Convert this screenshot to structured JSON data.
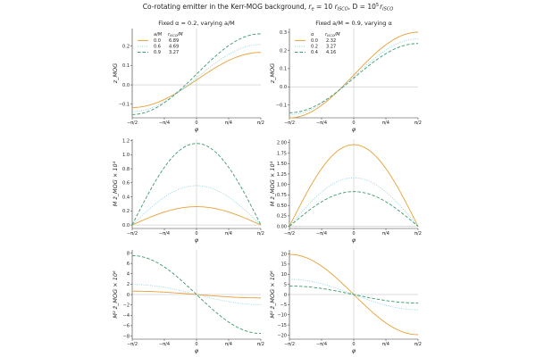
{
  "title": "Co-rotating emitter in the Kerr-MOG background, r_e = 10 r_ISCO, D = 10^5 r_ISCO",
  "title_parts": {
    "prefix": "Co-rotating emitter in the Kerr-MOG background, ",
    "re": "r",
    "re_sub": "e",
    "re_eq": " = 10 ",
    "r1": "r",
    "r1_sub": "ISCO",
    "sep": ", D = 10",
    "exp": "5",
    "r2": "r",
    "r2_sub": "ISCO"
  },
  "colors": {
    "orange": "#e8a035",
    "blue": "#8fd0e0",
    "green": "#3a9a6a",
    "axis": "#333333",
    "zero_line": "#bbbbbb"
  },
  "chart_data": [
    {
      "id": "z-left",
      "type": "line",
      "row": 0,
      "col": 0,
      "title": "Fixed α = 0.2, varying a/M",
      "xlabel": "φ",
      "ylabel": "z_MOG",
      "xlim": [
        -1.5708,
        1.5708
      ],
      "ylim": [
        -0.17,
        0.29
      ],
      "yticks": [
        -0.1,
        0.0,
        0.1,
        0.2
      ],
      "ytick_labels": [
        "−0.1",
        "0.0",
        "0.1",
        "0.2"
      ],
      "xticks": [
        -1.5708,
        -0.7854,
        0,
        0.7854,
        1.5708
      ],
      "xtick_labels": [
        "−π/2",
        "−π/4",
        "0",
        "π/4",
        "π/2"
      ],
      "legend": {
        "title_param": "a/M",
        "title_extra": "r_ISCO/M",
        "placement": "top-left",
        "entries": [
          {
            "param": "0.0",
            "extra": "6.89",
            "color": "#e8a035",
            "dash": "solid"
          },
          {
            "param": "0.6",
            "extra": "4.69",
            "color": "#8fd0e0",
            "dash": "dotted"
          },
          {
            "param": "0.9",
            "extra": "3.27",
            "color": "#3a9a6a",
            "dash": "dashed"
          }
        ]
      },
      "series": [
        {
          "name": "a/M = 0.0",
          "form": "offsin",
          "amp": 0.142,
          "offset": 0.025,
          "color": "#e8a035",
          "dash": "solid"
        },
        {
          "name": "a/M = 0.6",
          "form": "offsin",
          "amp": 0.173,
          "offset": 0.035,
          "color": "#8fd0e0",
          "dash": "dotted"
        },
        {
          "name": "a/M = 0.9",
          "form": "offsin",
          "amp": 0.208,
          "offset": 0.055,
          "color": "#3a9a6a",
          "dash": "dashed"
        }
      ]
    },
    {
      "id": "z-right",
      "type": "line",
      "row": 0,
      "col": 1,
      "title": "Fixed a/M = 0.9, varying α",
      "xlabel": "φ",
      "ylabel": "z_MOG",
      "xlim": [
        -1.5708,
        1.5708
      ],
      "ylim": [
        -0.17,
        0.32
      ],
      "yticks": [
        -0.1,
        0.0,
        0.1,
        0.2,
        0.3
      ],
      "ytick_labels": [
        "−0.1",
        "0.0",
        "0.1",
        "0.2",
        "0.3"
      ],
      "xticks": [
        -1.5708,
        -0.7854,
        0,
        0.7854,
        1.5708
      ],
      "xtick_labels": [
        "−π/2",
        "−π/4",
        "0",
        "π/4",
        "π/2"
      ],
      "legend": {
        "title_param": "α",
        "title_extra": "r_ISCO/M",
        "placement": "top-left",
        "entries": [
          {
            "param": "0.0",
            "extra": "2.32",
            "color": "#e8a035",
            "dash": "solid"
          },
          {
            "param": "0.2",
            "extra": "3.27",
            "color": "#8fd0e0",
            "dash": "dotted"
          },
          {
            "param": "0.4",
            "extra": "4.16",
            "color": "#3a9a6a",
            "dash": "dashed"
          }
        ]
      },
      "series": [
        {
          "name": "α = 0.0",
          "form": "offsin",
          "amp": 0.235,
          "offset": 0.065,
          "color": "#e8a035",
          "dash": "solid"
        },
        {
          "name": "α = 0.2",
          "form": "offsin",
          "amp": 0.208,
          "offset": 0.055,
          "color": "#8fd0e0",
          "dash": "dotted"
        },
        {
          "name": "α = 0.4",
          "form": "offsin",
          "amp": 0.19,
          "offset": 0.048,
          "color": "#3a9a6a",
          "dash": "dashed"
        }
      ]
    },
    {
      "id": "dz-left",
      "type": "line",
      "row": 1,
      "col": 0,
      "xlabel": "φ",
      "ylabel": "M ż_MOG × 10³",
      "xlim": [
        -1.5708,
        1.5708
      ],
      "ylim": [
        -0.05,
        1.22
      ],
      "yticks": [
        0.0,
        0.2,
        0.4,
        0.6,
        0.8,
        1.0,
        1.2
      ],
      "ytick_labels": [
        "0.0",
        "0.2",
        "0.4",
        "0.6",
        "0.8",
        "1.0",
        "1.2"
      ],
      "xticks": [
        -1.5708,
        -0.7854,
        0,
        0.7854,
        1.5708
      ],
      "xtick_labels": [
        "−π/2",
        "−π/4",
        "0",
        "π/4",
        "π/2"
      ],
      "series": [
        {
          "name": "a/M = 0.0",
          "form": "cos",
          "amp": 0.26,
          "offset": 0,
          "color": "#e8a035",
          "dash": "solid"
        },
        {
          "name": "a/M = 0.6",
          "form": "cos",
          "amp": 0.56,
          "offset": 0,
          "color": "#8fd0e0",
          "dash": "dotted"
        },
        {
          "name": "a/M = 0.9",
          "form": "cos",
          "amp": 1.16,
          "offset": 0,
          "color": "#3a9a6a",
          "dash": "dashed"
        }
      ]
    },
    {
      "id": "dz-right",
      "type": "line",
      "row": 1,
      "col": 1,
      "xlabel": "φ",
      "ylabel": "M ż_MOG × 10³",
      "xlim": [
        -1.5708,
        1.5708
      ],
      "ylim": [
        -0.05,
        2.08
      ],
      "yticks": [
        0.0,
        0.25,
        0.5,
        0.75,
        1.0,
        1.25,
        1.5,
        1.75,
        2.0
      ],
      "ytick_labels": [
        "0.00",
        "0.25",
        "0.50",
        "0.75",
        "1.00",
        "1.25",
        "1.50",
        "1.75",
        "2.00"
      ],
      "xticks": [
        -1.5708,
        -0.7854,
        0,
        0.7854,
        1.5708
      ],
      "xtick_labels": [
        "−π/2",
        "−π/4",
        "0",
        "π/4",
        "π/2"
      ],
      "series": [
        {
          "name": "α = 0.0",
          "form": "cos",
          "amp": 1.95,
          "offset": 0,
          "color": "#e8a035",
          "dash": "solid"
        },
        {
          "name": "α = 0.2",
          "form": "cos",
          "amp": 1.16,
          "offset": 0,
          "color": "#8fd0e0",
          "dash": "dotted"
        },
        {
          "name": "α = 0.4",
          "form": "cos",
          "amp": 0.83,
          "offset": 0,
          "color": "#3a9a6a",
          "dash": "dashed"
        }
      ]
    },
    {
      "id": "ddz-left",
      "type": "line",
      "row": 2,
      "col": 0,
      "xlabel": "φ",
      "ylabel": "M² z̈_MOG × 10⁶",
      "xlim": [
        -1.5708,
        1.5708
      ],
      "ylim": [
        -8.6,
        8.6
      ],
      "yticks": [
        -8,
        -6,
        -4,
        -2,
        0,
        2,
        4,
        6,
        8
      ],
      "ytick_labels": [
        "−8",
        "−6",
        "−4",
        "−2",
        "0",
        "2",
        "4",
        "6",
        "8"
      ],
      "xticks": [
        -1.5708,
        -0.7854,
        0,
        0.7854,
        1.5708
      ],
      "xtick_labels": [
        "−π/2",
        "−π/4",
        "0",
        "π/4",
        "π/2"
      ],
      "series": [
        {
          "name": "a/M = 0.0",
          "form": "negsin",
          "amp": 0.65,
          "offset": 0,
          "color": "#e8a035",
          "dash": "solid"
        },
        {
          "name": "a/M = 0.6",
          "form": "negsin",
          "amp": 1.95,
          "offset": 0,
          "color": "#8fd0e0",
          "dash": "dotted"
        },
        {
          "name": "a/M = 0.9",
          "form": "negsin",
          "amp": 7.5,
          "offset": 0,
          "color": "#3a9a6a",
          "dash": "dashed"
        }
      ]
    },
    {
      "id": "ddz-right",
      "type": "line",
      "row": 2,
      "col": 1,
      "xlabel": "φ",
      "ylabel": "M² z̈_MOG × 10⁶",
      "xlim": [
        -1.5708,
        1.5708
      ],
      "ylim": [
        -22,
        22
      ],
      "yticks": [
        -20,
        -15,
        -10,
        -5,
        0,
        5,
        10,
        15,
        20
      ],
      "ytick_labels": [
        "−20",
        "−15",
        "−10",
        "−5",
        "0",
        "5",
        "10",
        "15",
        "20"
      ],
      "xticks": [
        -1.5708,
        -0.7854,
        0,
        0.7854,
        1.5708
      ],
      "xtick_labels": [
        "−π/2",
        "−π/4",
        "0",
        "π/4",
        "π/2"
      ],
      "series": [
        {
          "name": "α = 0.0",
          "form": "negsin",
          "amp": 19.8,
          "offset": 0,
          "color": "#e8a035",
          "dash": "solid"
        },
        {
          "name": "α = 0.2",
          "form": "negsin",
          "amp": 7.5,
          "offset": 0,
          "color": "#8fd0e0",
          "dash": "dotted"
        },
        {
          "name": "α = 0.4",
          "form": "negsin",
          "amp": 4.2,
          "offset": 0,
          "color": "#3a9a6a",
          "dash": "dashed"
        }
      ]
    }
  ]
}
